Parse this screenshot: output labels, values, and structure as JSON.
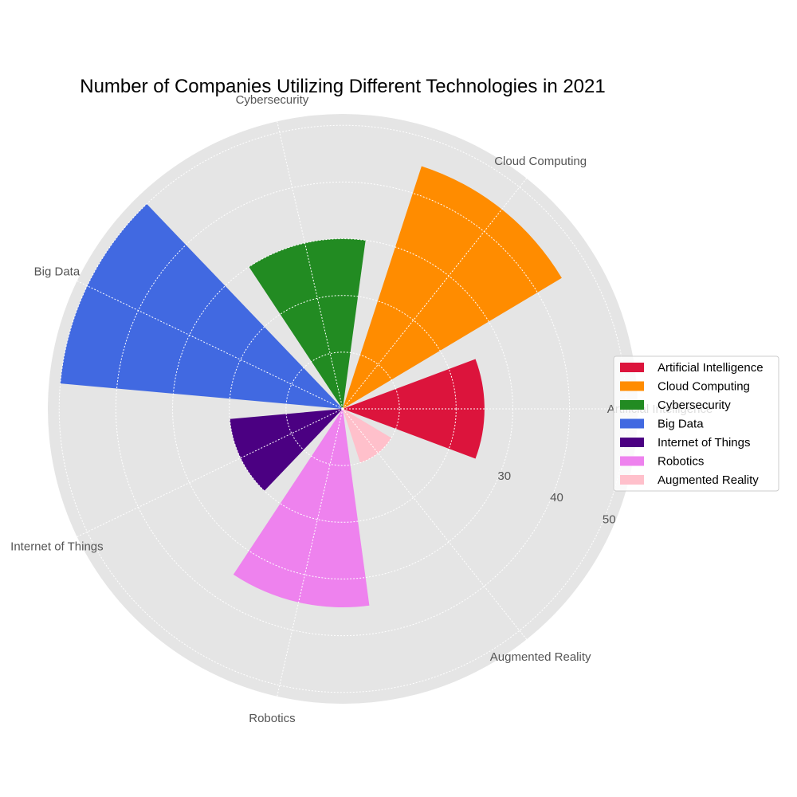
{
  "chart_data": {
    "type": "polar-bar",
    "title": "Number of Companies Utilizing Different Technologies in 2021",
    "categories": [
      "Artificial Intelligence",
      "Cloud Computing",
      "Cybersecurity",
      "Big Data",
      "Internet of Things",
      "Robotics",
      "Augmented Reality"
    ],
    "values": [
      25,
      45,
      30,
      50,
      20,
      35,
      10
    ],
    "colors": [
      "#dc143c",
      "#ff8c00",
      "#228b22",
      "#4169e1",
      "#4b0082",
      "#ee82ee",
      "#ffc0cb"
    ],
    "radial_ticks": [
      30,
      40,
      50
    ],
    "rlim": [
      0,
      52
    ],
    "grid": true,
    "legend_position": "right"
  }
}
